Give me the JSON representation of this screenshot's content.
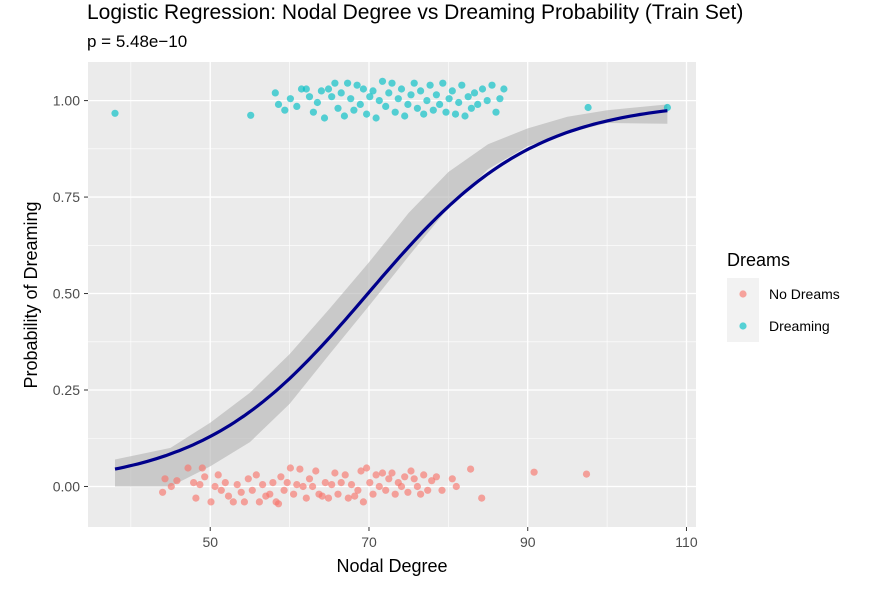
{
  "chart_data": {
    "type": "scatter",
    "title": "Logistic Regression: Nodal Degree vs Dreaming Probability (Train Set)",
    "subtitle": "p = 5.48e−10",
    "xlabel": "Nodal Degree",
    "ylabel": "Probability of Dreaming",
    "xlim": [
      34.6,
      111.2
    ],
    "ylim": [
      -0.105,
      1.1
    ],
    "x_ticks": [
      50,
      70,
      90,
      110
    ],
    "x_tick_labels": [
      "50",
      "70",
      "90",
      "110"
    ],
    "y_ticks": [
      0,
      0.25,
      0.5,
      0.75,
      1.0
    ],
    "y_tick_labels": [
      "0.00",
      "0.25",
      "0.50",
      "0.75",
      "1.00"
    ],
    "grid": true,
    "legend": {
      "title": "Dreams",
      "position": "right",
      "entries": [
        "No Dreams",
        "Dreaming"
      ]
    },
    "colors": {
      "no_dreams": "#F8766D",
      "dreaming": "#00BFC4",
      "fit_line": "#00008B",
      "ribbon": "#B3B3B3",
      "panel": "#EBEBEB"
    },
    "fit": {
      "intercept": -6.7,
      "slope": 0.0959,
      "x_range": [
        38,
        107.6
      ],
      "ci_lower": [
        [
          38,
          0.0
        ],
        [
          45,
          0.0
        ],
        [
          50,
          0.052
        ],
        [
          55,
          0.115
        ],
        [
          60,
          0.214
        ],
        [
          65,
          0.342
        ],
        [
          70,
          0.468
        ],
        [
          75,
          0.597
        ],
        [
          80,
          0.722
        ],
        [
          85,
          0.822
        ],
        [
          90,
          0.882
        ],
        [
          95,
          0.916
        ],
        [
          100,
          0.942
        ],
        [
          107.6,
          0.94
        ]
      ],
      "ci_upper": [
        [
          38,
          0.07
        ],
        [
          45,
          0.1
        ],
        [
          50,
          0.165
        ],
        [
          55,
          0.243
        ],
        [
          60,
          0.343
        ],
        [
          65,
          0.46
        ],
        [
          70,
          0.581
        ],
        [
          75,
          0.709
        ],
        [
          80,
          0.815
        ],
        [
          85,
          0.887
        ],
        [
          90,
          0.928
        ],
        [
          95,
          0.958
        ],
        [
          100,
          0.975
        ],
        [
          107.6,
          0.99
        ]
      ]
    },
    "series": [
      {
        "name": "No Dreams",
        "class_value": 0,
        "points": [
          [
            44.0,
            -0.015
          ],
          [
            44.3,
            0.02
          ],
          [
            45.1,
            0.0
          ],
          [
            45.8,
            0.015
          ],
          [
            47.2,
            0.048
          ],
          [
            47.9,
            0.01
          ],
          [
            48.2,
            -0.03
          ],
          [
            48.7,
            0.005
          ],
          [
            49.0,
            0.048
          ],
          [
            49.3,
            0.025
          ],
          [
            50.1,
            -0.04
          ],
          [
            50.6,
            0.0
          ],
          [
            51.0,
            0.03
          ],
          [
            51.4,
            -0.01
          ],
          [
            51.9,
            0.01
          ],
          [
            52.3,
            -0.025
          ],
          [
            52.9,
            -0.04
          ],
          [
            53.4,
            0.005
          ],
          [
            53.9,
            -0.015
          ],
          [
            54.3,
            -0.04
          ],
          [
            54.8,
            0.02
          ],
          [
            55.3,
            -0.01
          ],
          [
            55.8,
            0.03
          ],
          [
            56.2,
            -0.04
          ],
          [
            56.6,
            0.005
          ],
          [
            57.0,
            -0.025
          ],
          [
            57.5,
            -0.02
          ],
          [
            57.9,
            0.01
          ],
          [
            58.3,
            -0.04
          ],
          [
            58.6,
            -0.045
          ],
          [
            58.9,
            0.025
          ],
          [
            59.3,
            -0.01
          ],
          [
            59.7,
            0.01
          ],
          [
            60.1,
            0.048
          ],
          [
            60.5,
            -0.02
          ],
          [
            60.9,
            0.005
          ],
          [
            61.3,
            0.045
          ],
          [
            61.7,
            0.0
          ],
          [
            62.1,
            -0.03
          ],
          [
            62.5,
            0.02
          ],
          [
            62.9,
            0.0
          ],
          [
            63.3,
            0.04
          ],
          [
            63.7,
            -0.02
          ],
          [
            64.1,
            -0.025
          ],
          [
            64.5,
            0.01
          ],
          [
            64.9,
            -0.03
          ],
          [
            65.3,
            0.005
          ],
          [
            65.7,
            0.035
          ],
          [
            66.1,
            -0.02
          ],
          [
            66.5,
            0.01
          ],
          [
            67.0,
            0.03
          ],
          [
            67.4,
            -0.03
          ],
          [
            67.8,
            0.005
          ],
          [
            68.2,
            -0.025
          ],
          [
            68.6,
            -0.01
          ],
          [
            69.0,
            0.04
          ],
          [
            69.3,
            -0.04
          ],
          [
            69.7,
            0.048
          ],
          [
            70.1,
            0.01
          ],
          [
            70.5,
            -0.02
          ],
          [
            70.9,
            0.03
          ],
          [
            71.3,
            0.0
          ],
          [
            71.7,
            0.035
          ],
          [
            72.1,
            -0.01
          ],
          [
            72.5,
            0.02
          ],
          [
            72.9,
            0.035
          ],
          [
            73.3,
            -0.02
          ],
          [
            73.7,
            0.01
          ],
          [
            74.1,
            0.0
          ],
          [
            74.5,
            0.025
          ],
          [
            74.9,
            -0.015
          ],
          [
            75.3,
            0.04
          ],
          [
            75.7,
            0.02
          ],
          [
            76.1,
            0.0
          ],
          [
            76.5,
            -0.02
          ],
          [
            76.9,
            0.03
          ],
          [
            77.4,
            -0.01
          ],
          [
            77.9,
            0.015
          ],
          [
            78.5,
            0.025
          ],
          [
            79.2,
            -0.01
          ],
          [
            80.5,
            0.02
          ],
          [
            81.0,
            0.0
          ],
          [
            82.8,
            0.045
          ],
          [
            84.2,
            -0.03
          ],
          [
            90.8,
            0.037
          ],
          [
            97.4,
            0.032
          ]
        ]
      },
      {
        "name": "Dreaming",
        "class_value": 1,
        "points": [
          [
            38.0,
            0.967
          ],
          [
            55.1,
            0.962
          ],
          [
            58.2,
            1.02
          ],
          [
            58.6,
            0.99
          ],
          [
            59.4,
            0.975
          ],
          [
            60.1,
            1.005
          ],
          [
            60.9,
            0.985
          ],
          [
            61.5,
            1.03
          ],
          [
            62.1,
            1.03
          ],
          [
            62.5,
            1.01
          ],
          [
            63.0,
            0.97
          ],
          [
            63.5,
            0.995
          ],
          [
            64.0,
            1.025
          ],
          [
            64.4,
            0.955
          ],
          [
            64.9,
            1.03
          ],
          [
            65.3,
            1.01
          ],
          [
            65.7,
            1.045
          ],
          [
            66.1,
            0.98
          ],
          [
            66.5,
            1.02
          ],
          [
            66.9,
            0.96
          ],
          [
            67.3,
            1.045
          ],
          [
            67.7,
            1.005
          ],
          [
            68.1,
            0.975
          ],
          [
            68.5,
            1.04
          ],
          [
            68.9,
            0.99
          ],
          [
            69.3,
            1.03
          ],
          [
            69.7,
            0.965
          ],
          [
            70.1,
            1.01
          ],
          [
            70.5,
            1.025
          ],
          [
            70.9,
            0.955
          ],
          [
            71.3,
            1.0
          ],
          [
            71.7,
            1.05
          ],
          [
            72.1,
            0.985
          ],
          [
            72.5,
            1.02
          ],
          [
            72.9,
            1.045
          ],
          [
            73.3,
            0.97
          ],
          [
            73.7,
            1.005
          ],
          [
            74.1,
            1.03
          ],
          [
            74.5,
            0.96
          ],
          [
            74.9,
            0.99
          ],
          [
            75.3,
            1.015
          ],
          [
            75.7,
            1.045
          ],
          [
            76.1,
            0.98
          ],
          [
            76.5,
            1.025
          ],
          [
            76.9,
            0.965
          ],
          [
            77.3,
            1.0
          ],
          [
            77.7,
            1.04
          ],
          [
            78.1,
            0.975
          ],
          [
            78.5,
            1.015
          ],
          [
            78.9,
            0.99
          ],
          [
            79.3,
            1.045
          ],
          [
            79.7,
            0.97
          ],
          [
            80.1,
            1.005
          ],
          [
            80.5,
            1.025
          ],
          [
            80.9,
            0.965
          ],
          [
            81.3,
            0.995
          ],
          [
            81.7,
            1.04
          ],
          [
            82.1,
            0.96
          ],
          [
            82.5,
            1.01
          ],
          [
            82.9,
            0.98
          ],
          [
            83.3,
            1.02
          ],
          [
            83.7,
            0.99
          ],
          [
            84.3,
            1.03
          ],
          [
            84.9,
            1.0
          ],
          [
            85.5,
            1.04
          ],
          [
            86.0,
            0.97
          ],
          [
            86.5,
            1.005
          ],
          [
            87.0,
            1.03
          ],
          [
            97.6,
            0.982
          ],
          [
            107.6,
            0.982
          ]
        ]
      }
    ]
  }
}
